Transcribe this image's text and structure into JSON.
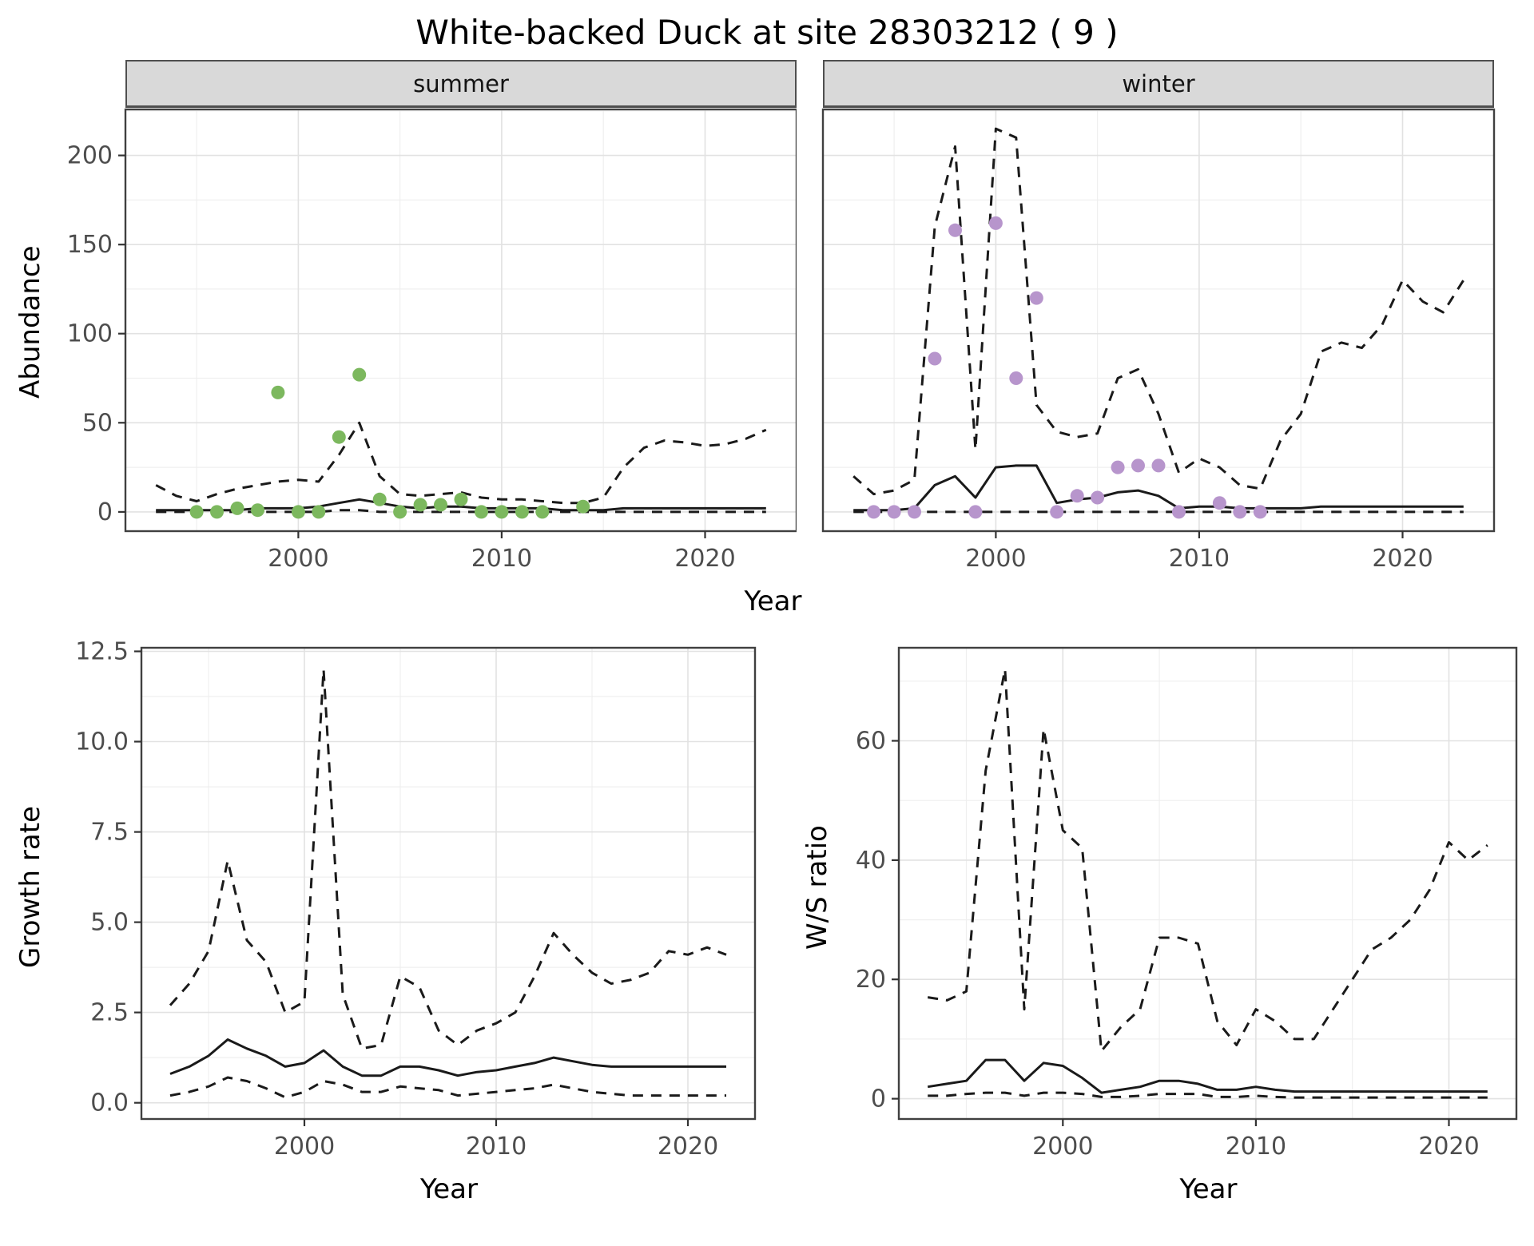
{
  "title": "White-backed Duck at site 28303212 ( 9 )",
  "colors": {
    "summer_points": "#7cb85e",
    "winter_points": "#b795cc",
    "line": "#1a1a1a",
    "grid_major": "#e2e2e2",
    "grid_minor": "#efefef",
    "panel_border": "#404040",
    "strip_bg": "#d9d9d9",
    "tick_text": "#4d4d4d"
  },
  "top": {
    "ylabel": "Abundance",
    "xlabel": "Year",
    "facets": [
      "summer",
      "winter"
    ]
  },
  "bottom_left": {
    "ylabel": "Growth rate",
    "xlabel": "Year"
  },
  "bottom_right": {
    "ylabel": "W/S ratio",
    "xlabel": "Year"
  },
  "chart_data": [
    {
      "id": "summer",
      "type": "line",
      "facet": "summer",
      "title": "Abundance (summer)",
      "xlabel": "Year",
      "ylabel": "Abundance",
      "xlim": [
        1991.5,
        2024.5
      ],
      "ylim": [
        -10.8,
        225.8
      ],
      "xticks": [
        2000,
        2010,
        2020
      ],
      "xtick_labels": [
        "2000",
        "2010",
        "2020"
      ],
      "yticks": [
        0,
        50,
        100,
        150,
        200
      ],
      "ytick_labels": [
        "0",
        "50",
        "100",
        "150",
        "200"
      ],
      "show_yticks": true,
      "grid": true,
      "x": [
        1993,
        1994,
        1995,
        1996,
        1997,
        1998,
        1999,
        2000,
        2001,
        2002,
        2003,
        2004,
        2005,
        2006,
        2007,
        2008,
        2009,
        2010,
        2011,
        2012,
        2013,
        2014,
        2015,
        2016,
        2017,
        2018,
        2019,
        2020,
        2021,
        2022,
        2023
      ],
      "series": [
        {
          "name": "upper_ci",
          "style": "dashed",
          "y": [
            15,
            9,
            6,
            10,
            13,
            15,
            17,
            18,
            17,
            32,
            50,
            20,
            10,
            9,
            10,
            11,
            8,
            7,
            7,
            6,
            5,
            5,
            8,
            25,
            36,
            40,
            39,
            37,
            38,
            41,
            46
          ]
        },
        {
          "name": "median",
          "style": "solid",
          "y": [
            1,
            1,
            1,
            1,
            1,
            2,
            2,
            2,
            3,
            5,
            7,
            5,
            3,
            2,
            3,
            3,
            2,
            2,
            2,
            2,
            1,
            1,
            1,
            2,
            2,
            2,
            2,
            2,
            2,
            2,
            2
          ]
        },
        {
          "name": "lower_ci",
          "style": "dashed",
          "y": [
            0,
            0,
            0,
            0,
            0,
            0,
            0,
            0,
            0,
            1,
            1,
            0,
            0,
            0,
            0,
            0,
            0,
            0,
            0,
            0,
            0,
            0,
            0,
            0,
            0,
            0,
            0,
            0,
            0,
            0,
            0
          ]
        }
      ],
      "points": {
        "name": "observed_counts",
        "color": "#7cb85e",
        "data": [
          [
            1995,
            0
          ],
          [
            1996,
            0
          ],
          [
            1997,
            2
          ],
          [
            1998,
            1
          ],
          [
            1999,
            67
          ],
          [
            2000,
            0
          ],
          [
            2001,
            0
          ],
          [
            2002,
            42
          ],
          [
            2003,
            77
          ],
          [
            2004,
            7
          ],
          [
            2005,
            0
          ],
          [
            2006,
            4
          ],
          [
            2007,
            4
          ],
          [
            2008,
            7
          ],
          [
            2009,
            0
          ],
          [
            2010,
            0
          ],
          [
            2011,
            0
          ],
          [
            2012,
            0
          ],
          [
            2014,
            3
          ]
        ]
      }
    },
    {
      "id": "winter",
      "type": "line",
      "facet": "winter",
      "title": "Abundance (winter)",
      "xlabel": "Year",
      "ylabel": "Abundance",
      "xlim": [
        1991.5,
        2024.5
      ],
      "ylim": [
        -10.8,
        225.8
      ],
      "xticks": [
        2000,
        2010,
        2020
      ],
      "xtick_labels": [
        "2000",
        "2010",
        "2020"
      ],
      "yticks": [
        0,
        50,
        100,
        150,
        200
      ],
      "ytick_labels": [
        "0",
        "50",
        "100",
        "150",
        "200"
      ],
      "show_yticks": false,
      "grid": true,
      "x": [
        1993,
        1994,
        1995,
        1996,
        1997,
        1998,
        1999,
        2000,
        2001,
        2002,
        2003,
        2004,
        2005,
        2006,
        2007,
        2008,
        2009,
        2010,
        2011,
        2012,
        2013,
        2014,
        2015,
        2016,
        2017,
        2018,
        2019,
        2020,
        2021,
        2022,
        2023
      ],
      "series": [
        {
          "name": "upper_ci",
          "style": "dashed",
          "y": [
            20,
            10,
            12,
            18,
            160,
            205,
            35,
            215,
            210,
            60,
            45,
            42,
            44,
            75,
            80,
            55,
            22,
            30,
            25,
            15,
            13,
            40,
            55,
            90,
            95,
            92,
            105,
            130,
            118,
            112,
            130
          ]
        },
        {
          "name": "median",
          "style": "solid",
          "y": [
            1,
            1,
            1,
            2,
            15,
            20,
            8,
            25,
            26,
            26,
            5,
            7,
            8,
            11,
            12,
            9,
            2,
            3,
            3,
            2,
            2,
            2,
            2,
            3,
            3,
            3,
            3,
            3,
            3,
            3,
            3
          ]
        },
        {
          "name": "lower_ci",
          "style": "dashed",
          "y": [
            0,
            0,
            0,
            0,
            0,
            0,
            0,
            0,
            0,
            0,
            0,
            0,
            0,
            0,
            0,
            0,
            0,
            0,
            0,
            0,
            0,
            0,
            0,
            0,
            0,
            0,
            0,
            0,
            0,
            0,
            0
          ]
        }
      ],
      "points": {
        "name": "observed_counts",
        "color": "#b795cc",
        "data": [
          [
            1994,
            0
          ],
          [
            1995,
            0
          ],
          [
            1996,
            0
          ],
          [
            1997,
            86
          ],
          [
            1998,
            158
          ],
          [
            1999,
            0
          ],
          [
            2000,
            162
          ],
          [
            2001,
            75
          ],
          [
            2002,
            120
          ],
          [
            2003,
            0
          ],
          [
            2004,
            9
          ],
          [
            2005,
            8
          ],
          [
            2006,
            25
          ],
          [
            2007,
            26
          ],
          [
            2008,
            26
          ],
          [
            2009,
            0
          ],
          [
            2011,
            5
          ],
          [
            2012,
            0
          ],
          [
            2013,
            0
          ]
        ]
      }
    },
    {
      "id": "growth",
      "type": "line",
      "title": "Growth rate",
      "xlabel": "Year",
      "ylabel": "Growth rate",
      "xlim": [
        1991.5,
        2023.5
      ],
      "ylim": [
        -0.45,
        12.6
      ],
      "xticks": [
        2000,
        2010,
        2020
      ],
      "xtick_labels": [
        "2000",
        "2010",
        "2020"
      ],
      "yticks": [
        0,
        2.5,
        5,
        7.5,
        10,
        12.5
      ],
      "ytick_labels": [
        "0.0",
        "2.5",
        "5.0",
        "7.5",
        "10.0",
        "12.5"
      ],
      "show_yticks": true,
      "grid": true,
      "x": [
        1993,
        1994,
        1995,
        1996,
        1997,
        1998,
        1999,
        2000,
        2001,
        2002,
        2003,
        2004,
        2005,
        2006,
        2007,
        2008,
        2009,
        2010,
        2011,
        2012,
        2013,
        2014,
        2015,
        2016,
        2017,
        2018,
        2019,
        2020,
        2021,
        2022
      ],
      "series": [
        {
          "name": "upper_ci",
          "style": "dashed",
          "y": [
            2.7,
            3.3,
            4.2,
            6.7,
            4.5,
            3.9,
            2.5,
            2.8,
            12.0,
            3.0,
            1.5,
            1.6,
            3.5,
            3.2,
            2.0,
            1.6,
            2.0,
            2.2,
            2.5,
            3.5,
            4.7,
            4.1,
            3.6,
            3.3,
            3.4,
            3.6,
            4.2,
            4.1,
            4.3,
            4.1
          ]
        },
        {
          "name": "median",
          "style": "solid",
          "y": [
            0.8,
            1.0,
            1.3,
            1.75,
            1.5,
            1.3,
            1.0,
            1.1,
            1.45,
            1.0,
            0.75,
            0.75,
            1.0,
            1.0,
            0.9,
            0.75,
            0.85,
            0.9,
            1.0,
            1.1,
            1.25,
            1.15,
            1.05,
            1.0,
            1.0,
            1.0,
            1.0,
            1.0,
            1.0,
            1.0
          ]
        },
        {
          "name": "lower_ci",
          "style": "dashed",
          "y": [
            0.2,
            0.3,
            0.45,
            0.7,
            0.6,
            0.4,
            0.15,
            0.3,
            0.6,
            0.5,
            0.3,
            0.3,
            0.45,
            0.4,
            0.35,
            0.2,
            0.25,
            0.3,
            0.35,
            0.4,
            0.5,
            0.4,
            0.3,
            0.25,
            0.2,
            0.2,
            0.2,
            0.2,
            0.2,
            0.2
          ]
        }
      ]
    },
    {
      "id": "ws",
      "type": "line",
      "title": "W/S ratio",
      "xlabel": "Year",
      "ylabel": "W/S ratio",
      "xlim": [
        1991.5,
        2023.5
      ],
      "ylim": [
        -3.4,
        75.6
      ],
      "xticks": [
        2000,
        2010,
        2020
      ],
      "xtick_labels": [
        "2000",
        "2010",
        "2020"
      ],
      "yticks": [
        0,
        20,
        40,
        60
      ],
      "ytick_labels": [
        "0",
        "20",
        "40",
        "60"
      ],
      "show_yticks": true,
      "grid": true,
      "x": [
        1993,
        1994,
        1995,
        1996,
        1997,
        1998,
        1999,
        2000,
        2001,
        2002,
        2003,
        2004,
        2005,
        2006,
        2007,
        2008,
        2009,
        2010,
        2011,
        2012,
        2013,
        2014,
        2015,
        2016,
        2017,
        2018,
        2019,
        2020,
        2021,
        2022
      ],
      "series": [
        {
          "name": "upper_ci",
          "style": "dashed",
          "y": [
            17,
            16.5,
            18,
            55,
            72,
            15,
            62,
            45,
            42,
            8,
            12,
            15,
            27,
            27,
            26,
            13,
            9,
            15,
            13,
            10,
            10,
            15,
            20,
            25,
            27,
            30,
            35,
            43,
            40,
            42.5
          ]
        },
        {
          "name": "median",
          "style": "solid",
          "y": [
            2,
            2.5,
            3,
            6.5,
            6.5,
            3,
            6,
            5.5,
            3.5,
            1,
            1.5,
            2,
            3,
            3,
            2.5,
            1.5,
            1.5,
            2,
            1.5,
            1.2,
            1.2,
            1.2,
            1.2,
            1.2,
            1.2,
            1.2,
            1.2,
            1.2,
            1.2,
            1.2
          ]
        },
        {
          "name": "lower_ci",
          "style": "dashed",
          "y": [
            0.5,
            0.5,
            0.8,
            1,
            1,
            0.5,
            1,
            1,
            0.8,
            0.3,
            0.3,
            0.5,
            0.8,
            0.8,
            0.8,
            0.3,
            0.3,
            0.5,
            0.3,
            0.2,
            0.2,
            0.2,
            0.2,
            0.2,
            0.2,
            0.2,
            0.2,
            0.2,
            0.2,
            0.2
          ]
        }
      ]
    }
  ]
}
